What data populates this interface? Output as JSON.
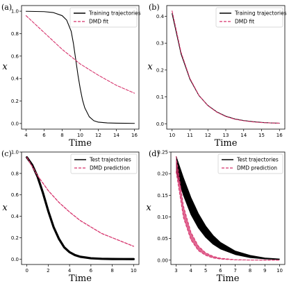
{
  "chart_data": [
    {
      "id": "a",
      "panel_label": "(a)",
      "type": "line",
      "xlabel": "Time",
      "ylabel": "x",
      "xlim": [
        3.5,
        16.5
      ],
      "ylim": [
        -0.05,
        1.05
      ],
      "xticks": [
        4,
        6,
        8,
        10,
        12,
        14,
        16
      ],
      "yticks": [
        0.0,
        0.2,
        0.4,
        0.6,
        0.8,
        1.0
      ],
      "tick_labels_x": [
        "4",
        "6",
        "8",
        "10",
        "12",
        "14",
        "16"
      ],
      "tick_labels_y": [
        "0.0",
        "0.2",
        "0.4",
        "0.6",
        "0.8",
        "1.0"
      ],
      "legend_position": "top-right",
      "series": [
        {
          "name": "Training trajectories",
          "color": "#000000",
          "style": "solid",
          "x": [
            4,
            6,
            7,
            8,
            8.5,
            9,
            9.25,
            9.5,
            9.75,
            10,
            10.25,
            10.5,
            11,
            11.5,
            12,
            13,
            14,
            15,
            16
          ],
          "y": [
            0.999,
            0.996,
            0.988,
            0.96,
            0.92,
            0.82,
            0.71,
            0.57,
            0.43,
            0.31,
            0.21,
            0.14,
            0.06,
            0.025,
            0.012,
            0.005,
            0.003,
            0.002,
            0.001
          ]
        },
        {
          "name": "DMD fit",
          "color": "#d6336c",
          "style": "dashed",
          "x": [
            4,
            6,
            8,
            10,
            12,
            14,
            16
          ],
          "y": [
            0.96,
            0.81,
            0.66,
            0.53,
            0.43,
            0.34,
            0.27
          ]
        }
      ]
    },
    {
      "id": "b",
      "panel_label": "(b)",
      "type": "line",
      "xlabel": "Time",
      "ylabel": "x",
      "xlim": [
        9.7,
        16.3
      ],
      "ylim": [
        -0.02,
        0.44
      ],
      "xticks": [
        10,
        11,
        12,
        13,
        14,
        15,
        16
      ],
      "yticks": [
        0.0,
        0.1,
        0.2,
        0.3,
        0.4
      ],
      "tick_labels_x": [
        "10",
        "11",
        "12",
        "13",
        "14",
        "15",
        "16"
      ],
      "tick_labels_y": [
        "0.0",
        "0.1",
        "0.2",
        "0.3",
        "0.4"
      ],
      "legend_position": "top-right",
      "series": [
        {
          "name": "Training trajectories",
          "color": "#000000",
          "style": "solid",
          "x": [
            10,
            10.5,
            11,
            11.5,
            12,
            12.5,
            13,
            13.5,
            14,
            14.5,
            15,
            15.5,
            16
          ],
          "y": [
            0.41,
            0.26,
            0.165,
            0.105,
            0.068,
            0.044,
            0.028,
            0.018,
            0.012,
            0.008,
            0.005,
            0.003,
            0.002
          ]
        },
        {
          "name": "DMD fit",
          "color": "#d6336c",
          "style": "dashed",
          "x": [
            10,
            10.5,
            11,
            11.5,
            12,
            12.5,
            13,
            13.5,
            14,
            14.5,
            15,
            15.5,
            16
          ],
          "y": [
            0.42,
            0.266,
            0.168,
            0.106,
            0.067,
            0.043,
            0.027,
            0.017,
            0.011,
            0.007,
            0.0045,
            0.003,
            0.002
          ]
        }
      ]
    },
    {
      "id": "c",
      "panel_label": "(c)",
      "type": "line",
      "xlabel": "Time",
      "ylabel": "x",
      "xlim": [
        -0.5,
        10.5
      ],
      "ylim": [
        -0.05,
        1.0
      ],
      "xticks": [
        0,
        2,
        4,
        6,
        8,
        10
      ],
      "yticks": [
        0.0,
        0.2,
        0.4,
        0.6,
        0.8,
        1.0
      ],
      "tick_labels_x": [
        "0",
        "2",
        "4",
        "6",
        "8",
        "10"
      ],
      "tick_labels_y": [
        "0.0",
        "0.2",
        "0.4",
        "0.6",
        "0.8",
        "1.0"
      ],
      "legend_position": "top-right",
      "series": [
        {
          "name": "Test trajectories",
          "color": "#000000",
          "style": "solid",
          "width": 3.2,
          "x": [
            0,
            0.5,
            1,
            1.5,
            2,
            2.5,
            3,
            3.5,
            4,
            4.5,
            5,
            6,
            7,
            8,
            9,
            10
          ],
          "y": [
            0.95,
            0.88,
            0.77,
            0.62,
            0.45,
            0.3,
            0.19,
            0.11,
            0.065,
            0.038,
            0.022,
            0.008,
            0.003,
            0.001,
            0.0005,
            0.0002
          ]
        },
        {
          "name": "DMD prediction",
          "color": "#d6336c",
          "style": "dashed",
          "width": 1.3,
          "x": [
            0,
            1,
            2,
            3,
            4,
            5,
            6,
            7,
            8,
            9,
            10
          ],
          "y": [
            0.95,
            0.78,
            0.64,
            0.53,
            0.44,
            0.36,
            0.3,
            0.24,
            0.2,
            0.16,
            0.12
          ]
        }
      ]
    },
    {
      "id": "d",
      "panel_label": "(d)",
      "type": "line",
      "xlabel": "Time",
      "ylabel": "x",
      "xlim": [
        2.65,
        10.35
      ],
      "ylim": [
        -0.01,
        0.25
      ],
      "xticks": [
        3,
        4,
        5,
        6,
        7,
        8,
        9,
        10
      ],
      "yticks": [
        0.0,
        0.05,
        0.1,
        0.15,
        0.2,
        0.25
      ],
      "tick_labels_x": [
        "3",
        "4",
        "5",
        "6",
        "7",
        "8",
        "9",
        "10"
      ],
      "tick_labels_y": [
        "0.00",
        "0.05",
        "0.10",
        "0.15",
        "0.20",
        "0.25"
      ],
      "legend_position": "top-right",
      "series": [
        {
          "name": "Test trajectories",
          "color": "#000000",
          "style": "solid",
          "width": 1.1,
          "band": true,
          "x": [
            3,
            3.5,
            4,
            4.5,
            5,
            5.5,
            6,
            7,
            8,
            9,
            10
          ],
          "y_low": [
            0.205,
            0.15,
            0.106,
            0.075,
            0.053,
            0.037,
            0.026,
            0.013,
            0.006,
            0.003,
            0.0015
          ],
          "y_high": [
            0.24,
            0.19,
            0.145,
            0.108,
            0.079,
            0.057,
            0.041,
            0.021,
            0.011,
            0.005,
            0.0025
          ]
        },
        {
          "name": "DMD prediction",
          "color": "#d6336c",
          "style": "dashed",
          "width": 1.0,
          "band": true,
          "x": [
            3,
            3.5,
            4,
            4.5,
            5,
            5.5,
            6,
            7,
            8,
            9,
            10
          ],
          "y_low": [
            0.205,
            0.098,
            0.047,
            0.022,
            0.011,
            0.005,
            0.0025,
            0.0006,
            0.0002,
            0.0001,
            0.0
          ],
          "y_high": [
            0.24,
            0.125,
            0.065,
            0.033,
            0.017,
            0.009,
            0.0045,
            0.0012,
            0.0003,
            0.0001,
            0.0
          ]
        }
      ]
    }
  ]
}
